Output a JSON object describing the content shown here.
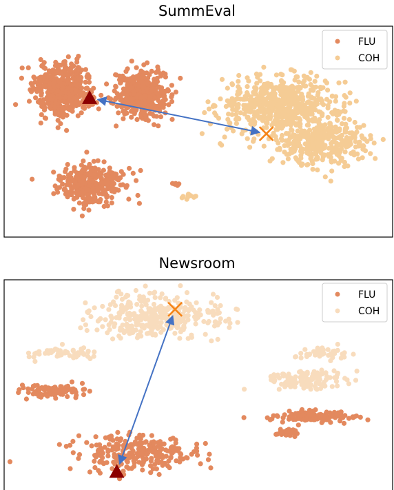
{
  "colors": {
    "flu": "#e3895e",
    "coh_summeval": "#f5cc95",
    "coh_newsroom": "#f8dcbd",
    "triangle": "#8b0000",
    "cross": "#f58519",
    "arrow": "#4472c4",
    "frame": "#000000"
  },
  "chart_data": [
    {
      "type": "scatter",
      "title": "SummEval",
      "grid": false,
      "axes_visible": false,
      "legend_placement": "top-right",
      "legend": [
        "FLU",
        "COH"
      ],
      "series": [
        {
          "name": "FLU",
          "clusters": [
            {
              "center": [
                -0.7,
                0.4
              ],
              "spread": [
                0.14,
                0.22
              ],
              "count": 500
            },
            {
              "center": [
                -0.3,
                0.35
              ],
              "spread": [
                0.12,
                0.2
              ],
              "count": 420
            },
            {
              "center": [
                -0.55,
                -0.5
              ],
              "spread": [
                0.15,
                0.17
              ],
              "count": 320
            },
            {
              "center": [
                -0.12,
                -0.5
              ],
              "spread": [
                0.025,
                0.02
              ],
              "count": 8
            }
          ]
        },
        {
          "name": "COH",
          "clusters": [
            {
              "center": [
                0.42,
                0.25
              ],
              "spread": [
                0.28,
                0.24
              ],
              "count": 600
            },
            {
              "center": [
                0.65,
                -0.1
              ],
              "spread": [
                0.22,
                0.2
              ],
              "count": 340
            },
            {
              "center": [
                -0.05,
                -0.62
              ],
              "spread": [
                0.035,
                0.02
              ],
              "count": 12
            }
          ]
        }
      ],
      "centroids": {
        "FLU": {
          "x": -0.56,
          "y": 0.32
        },
        "COH": {
          "x": 0.35,
          "y": -0.02
        }
      },
      "xlim": [
        -1.0,
        1.0
      ],
      "ylim": [
        -1.0,
        1.0
      ]
    },
    {
      "type": "scatter",
      "title": "Newsroom",
      "grid": false,
      "axes_visible": false,
      "legend_placement": "top-right",
      "legend": [
        "FLU",
        "COH"
      ],
      "series": [
        {
          "name": "FLU",
          "clusters": [
            {
              "center": [
                -0.75,
                -0.05
              ],
              "spread": [
                0.15,
                0.05
              ],
              "count": 80
            },
            {
              "center": [
                -0.33,
                -0.65
              ],
              "spread": [
                0.28,
                0.15
              ],
              "count": 260
            },
            {
              "center": [
                0.6,
                -0.3
              ],
              "spread": [
                0.2,
                0.05
              ],
              "count": 130
            },
            {
              "center": [
                0.46,
                -0.45
              ],
              "spread": [
                0.05,
                0.03
              ],
              "count": 40
            }
          ]
        },
        {
          "name": "COH",
          "clusters": [
            {
              "center": [
                -0.2,
                0.65
              ],
              "spread": [
                0.3,
                0.2
              ],
              "count": 330
            },
            {
              "center": [
                -0.7,
                0.3
              ],
              "spread": [
                0.16,
                0.05
              ],
              "count": 60
            },
            {
              "center": [
                0.55,
                0.05
              ],
              "spread": [
                0.2,
                0.08
              ],
              "count": 130
            },
            {
              "center": [
                0.63,
                0.3
              ],
              "spread": [
                0.12,
                0.05
              ],
              "count": 40
            }
          ]
        }
      ],
      "centroids": {
        "FLU": {
          "x": -0.42,
          "y": -0.82
        },
        "COH": {
          "x": -0.12,
          "y": 0.72
        }
      },
      "xlim": [
        -1.0,
        1.0
      ],
      "ylim": [
        -1.0,
        1.0
      ]
    }
  ]
}
